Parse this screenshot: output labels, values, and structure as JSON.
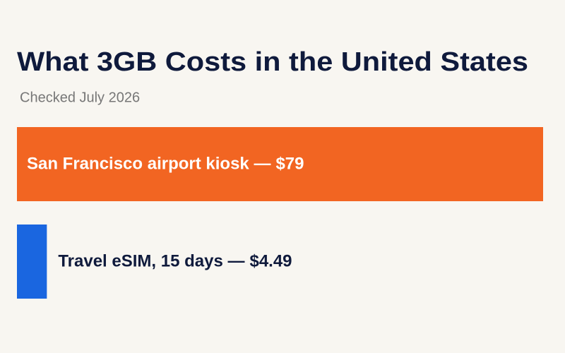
{
  "chart_data": {
    "type": "bar",
    "orientation": "horizontal",
    "title": "What 3GB Costs in the United States",
    "subtitle": "Checked July 2026",
    "categories": [
      "San Francisco airport kiosk —",
      "Travel eSIM, 15 days —"
    ],
    "values": [
      79,
      4.49
    ],
    "value_labels": [
      "$79",
      "$4.49"
    ],
    "colors": [
      "#f26522",
      "#1a66e0"
    ]
  }
}
